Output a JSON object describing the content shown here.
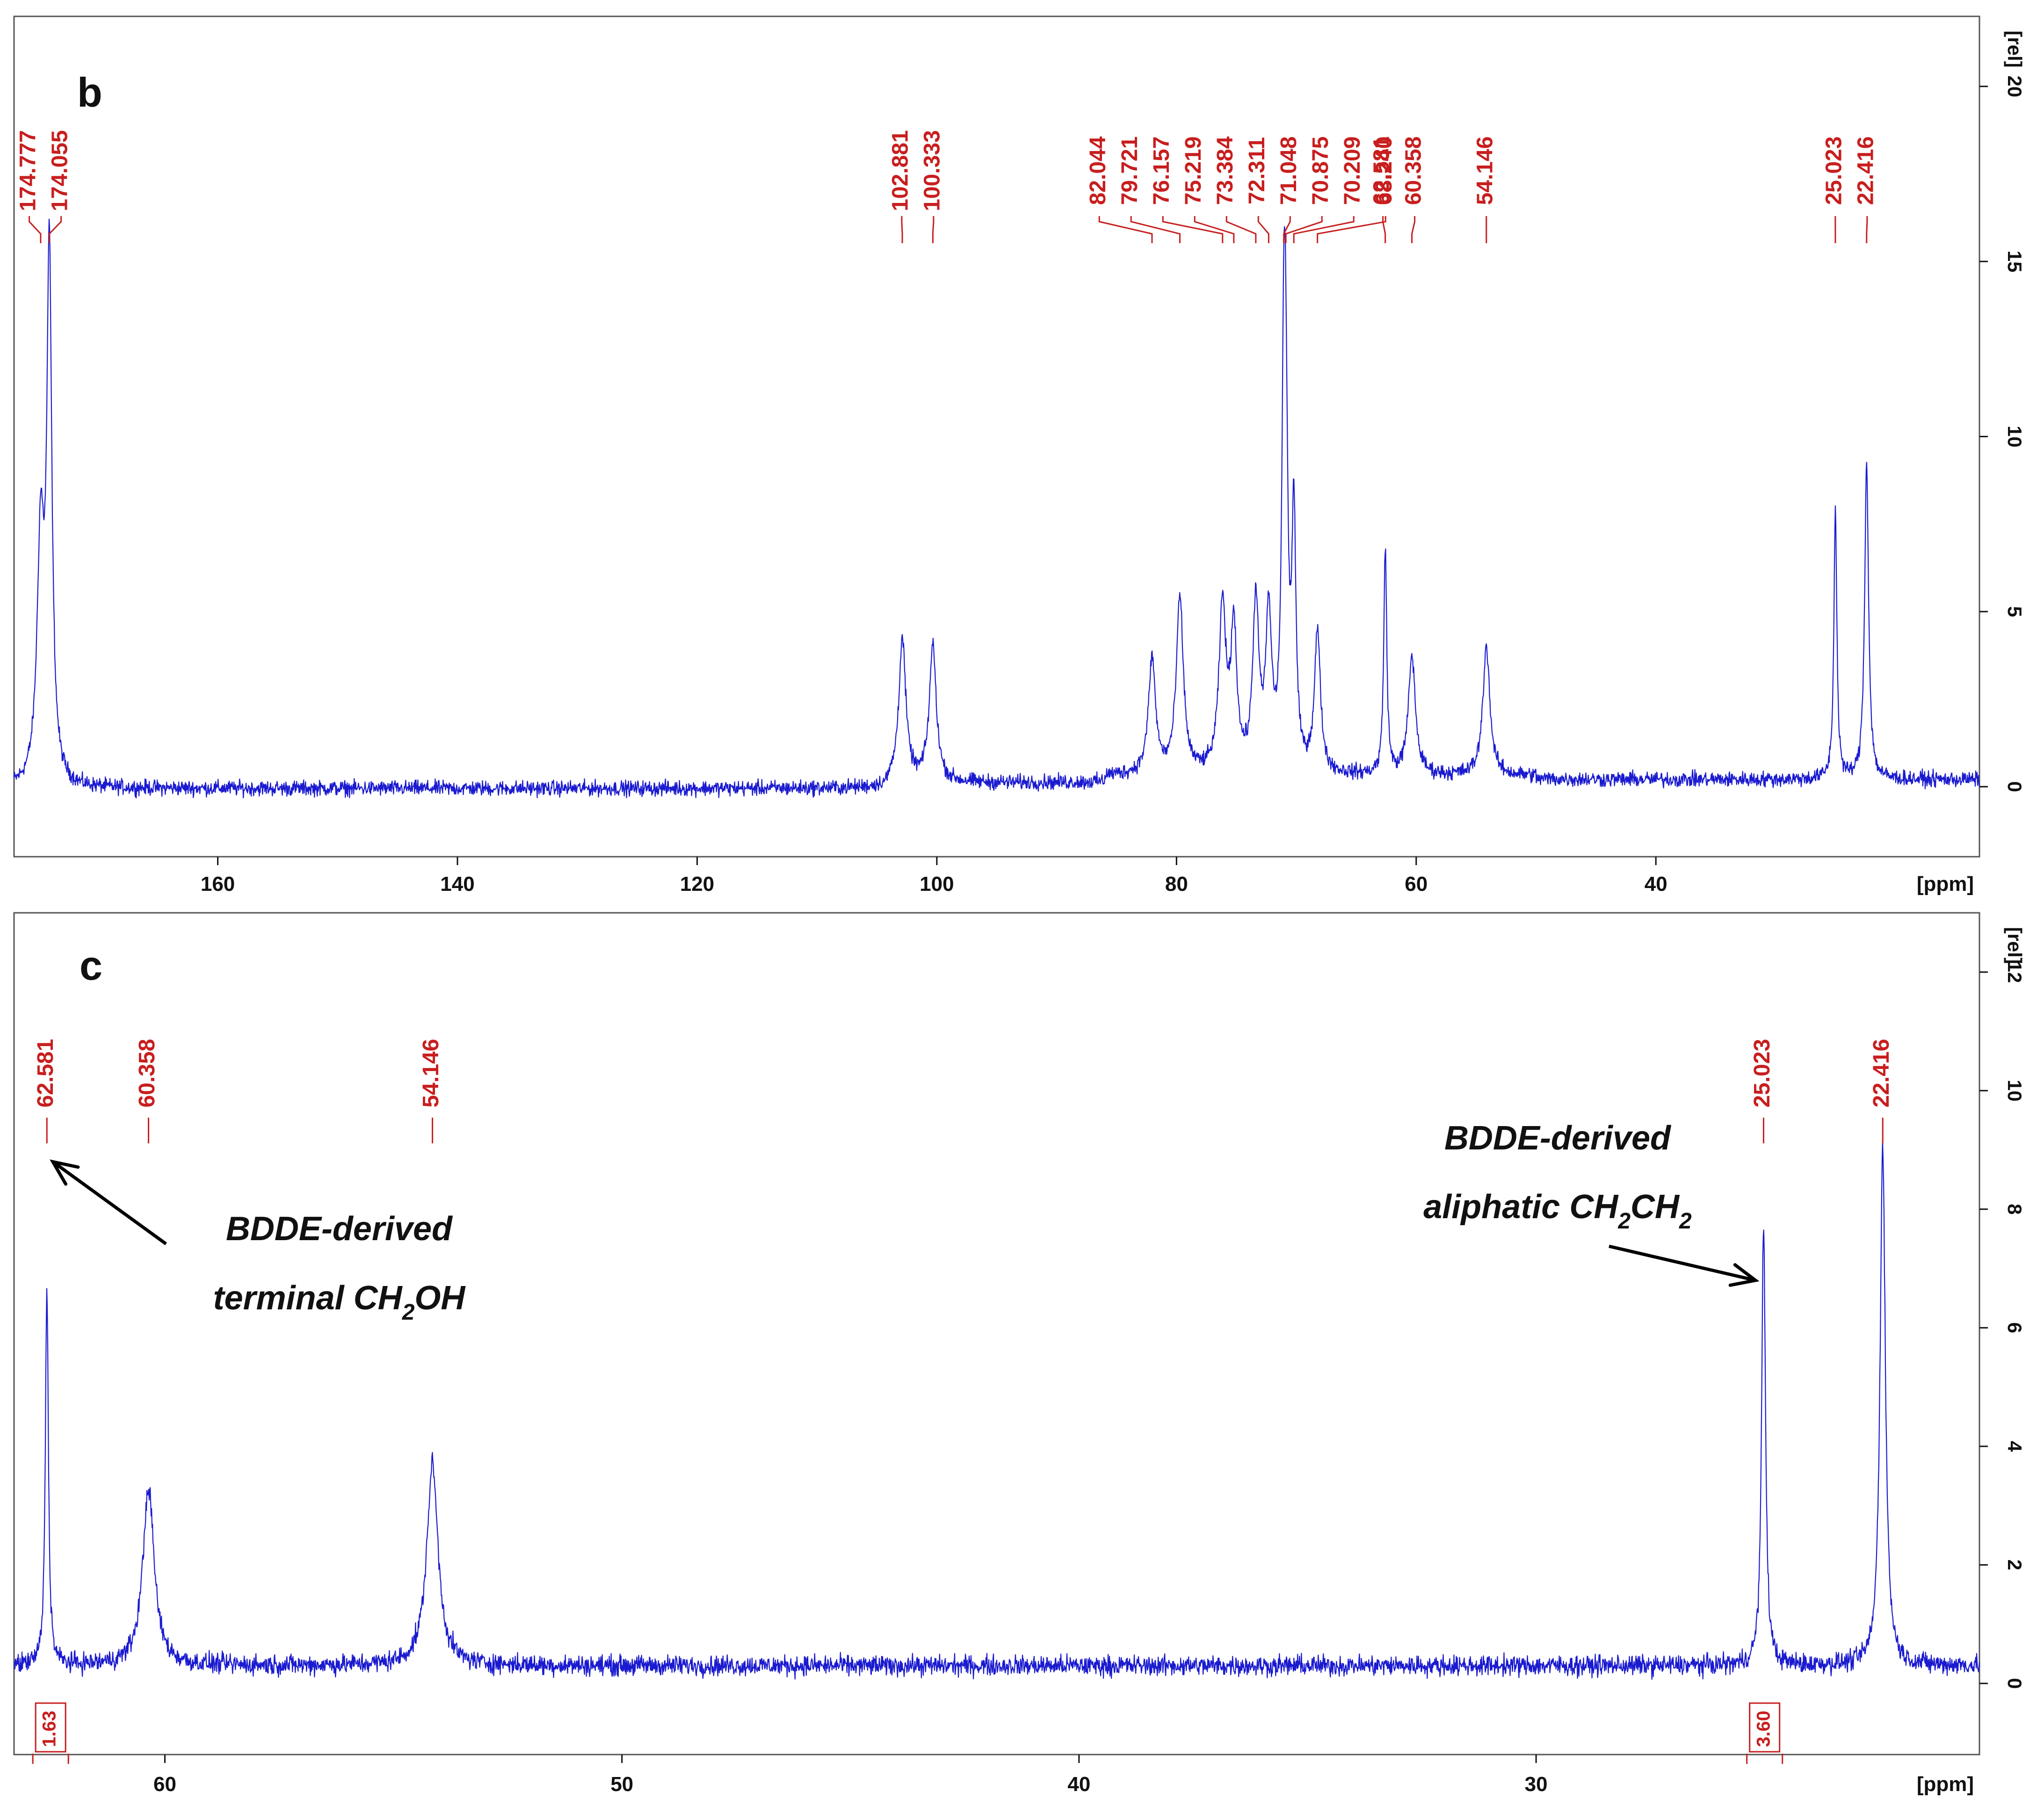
{
  "colors": {
    "spectrum": "#1a1ad0",
    "peak_label": "#c81e1e",
    "frame": "#555555",
    "text": "#111111"
  },
  "chart_data": [
    {
      "type": "line",
      "panel_label": "b",
      "xlabel": "[ppm]",
      "ylabel": "[rel]",
      "x_reversed": true,
      "xlim": [
        177,
        13
      ],
      "ylim": [
        -2.0,
        22.0
      ],
      "x_ticks": [
        160,
        140,
        120,
        100,
        80,
        60,
        40
      ],
      "y_ticks": [
        0,
        5,
        10,
        15,
        20
      ],
      "noise_amplitude": 0.32,
      "segments": [
        {
          "x": [
            177,
            104
          ],
          "baseline": -0.05
        },
        {
          "x": [
            104,
            86
          ],
          "baseline": 0.1
        },
        {
          "x": [
            86,
            50
          ],
          "baseline": 0.3
        },
        {
          "x": [
            50,
            13
          ],
          "baseline": 0.2
        }
      ],
      "peaks": [
        {
          "x": 174.777,
          "y": 6.9,
          "label": "174.777",
          "width": 0.35
        },
        {
          "x": 174.055,
          "y": 14.8,
          "label": "174.055",
          "width": 0.25
        },
        {
          "x": 102.881,
          "y": 4.1,
          "label": "102.881",
          "width": 0.35
        },
        {
          "x": 100.333,
          "y": 3.9,
          "label": "100.333",
          "width": 0.35
        },
        {
          "x": 82.044,
          "y": 3.3,
          "label": "82.044",
          "width": 0.35
        },
        {
          "x": 79.721,
          "y": 5.0,
          "label": "79.721",
          "width": 0.35
        },
        {
          "x": 76.157,
          "y": 4.7,
          "label": "76.157",
          "width": 0.35
        },
        {
          "x": 75.219,
          "y": 4.0,
          "label": "75.219",
          "width": 0.3
        },
        {
          "x": 73.384,
          "y": 4.8,
          "label": "73.384",
          "width": 0.3
        },
        {
          "x": 72.311,
          "y": 4.3,
          "label": "72.311",
          "width": 0.3
        },
        {
          "x": 71.048,
          "y": 10.0,
          "label": "71.048",
          "width": 0.2
        },
        {
          "x": 70.875,
          "y": 7.5,
          "label": "70.875",
          "width": 0.2
        },
        {
          "x": 70.209,
          "y": 7.1,
          "label": "70.209",
          "width": 0.2
        },
        {
          "x": 68.24,
          "y": 4.0,
          "label": "68.240",
          "width": 0.3
        },
        {
          "x": 62.581,
          "y": 6.5,
          "label": "62.581",
          "width": 0.15
        },
        {
          "x": 60.358,
          "y": 3.4,
          "label": "60.358",
          "width": 0.35
        },
        {
          "x": 54.146,
          "y": 3.7,
          "label": "54.146",
          "width": 0.35
        },
        {
          "x": 25.023,
          "y": 7.7,
          "label": "25.023",
          "width": 0.15
        },
        {
          "x": 22.416,
          "y": 9.0,
          "label": "22.416",
          "width": 0.2
        }
      ],
      "label_groups": [
        {
          "labels": [
            "174.777",
            "174.055"
          ],
          "center": 174.4
        },
        {
          "labels": [
            "102.881",
            "100.333"
          ],
          "center": 101.6
        },
        {
          "labels": [
            "82.044",
            "79.721",
            "76.157",
            "75.219",
            "73.384",
            "72.311",
            "71.048",
            "70.875",
            "70.209",
            "68.240"
          ],
          "center": 74.5
        },
        {
          "labels": [
            "62.581",
            "60.358"
          ],
          "center": 61.45
        },
        {
          "labels": [
            "54.146"
          ],
          "center": 54.146
        },
        {
          "labels": [
            "25.023",
            "22.416"
          ],
          "center": 23.7
        }
      ]
    },
    {
      "type": "line",
      "panel_label": "c",
      "xlabel": "[ppm]",
      "ylabel": "[rel]",
      "x_reversed": true,
      "xlim": [
        63.3,
        20.3
      ],
      "ylim": [
        -1.2,
        13.0
      ],
      "x_ticks": [
        60,
        50,
        40,
        30
      ],
      "y_ticks": [
        0,
        2,
        4,
        6,
        8,
        10,
        12
      ],
      "noise_amplitude": 0.25,
      "segments": [
        {
          "x": [
            63.3,
            20.3
          ],
          "baseline": 0.3
        }
      ],
      "peaks": [
        {
          "x": 62.581,
          "y": 6.4,
          "label": "62.581",
          "width": 0.04
        },
        {
          "x": 60.358,
          "y": 3.0,
          "label": "60.358",
          "width": 0.15
        },
        {
          "x": 54.146,
          "y": 3.4,
          "label": "54.146",
          "width": 0.15
        },
        {
          "x": 25.023,
          "y": 7.5,
          "label": "25.023",
          "width": 0.05
        },
        {
          "x": 22.416,
          "y": 8.8,
          "label": "22.416",
          "width": 0.07
        }
      ],
      "label_groups": [
        {
          "labels": [
            "62.581"
          ],
          "center": 62.581
        },
        {
          "labels": [
            "60.358"
          ],
          "center": 60.358
        },
        {
          "labels": [
            "54.146"
          ],
          "center": 54.146
        },
        {
          "labels": [
            "25.023"
          ],
          "center": 25.023
        },
        {
          "labels": [
            "22.416"
          ],
          "center": 22.416
        }
      ],
      "integrals": [
        {
          "x": 62.5,
          "label": "1.63"
        },
        {
          "x": 25.0,
          "label": "3.60"
        }
      ],
      "annotations": [
        {
          "line1": "BDDE-derived",
          "line2_main": "terminal CH",
          "line2_sub": "2",
          "line2_tail": "OH",
          "target_x": 62.45,
          "target_y": 8.8
        },
        {
          "line1": "BDDE-derived",
          "line2_main": "aliphatic CH",
          "line2_sub": "2",
          "line2_tail": "CH",
          "line2_sub2": "2",
          "target_x": 25.2,
          "target_y": 6.8
        }
      ]
    }
  ]
}
